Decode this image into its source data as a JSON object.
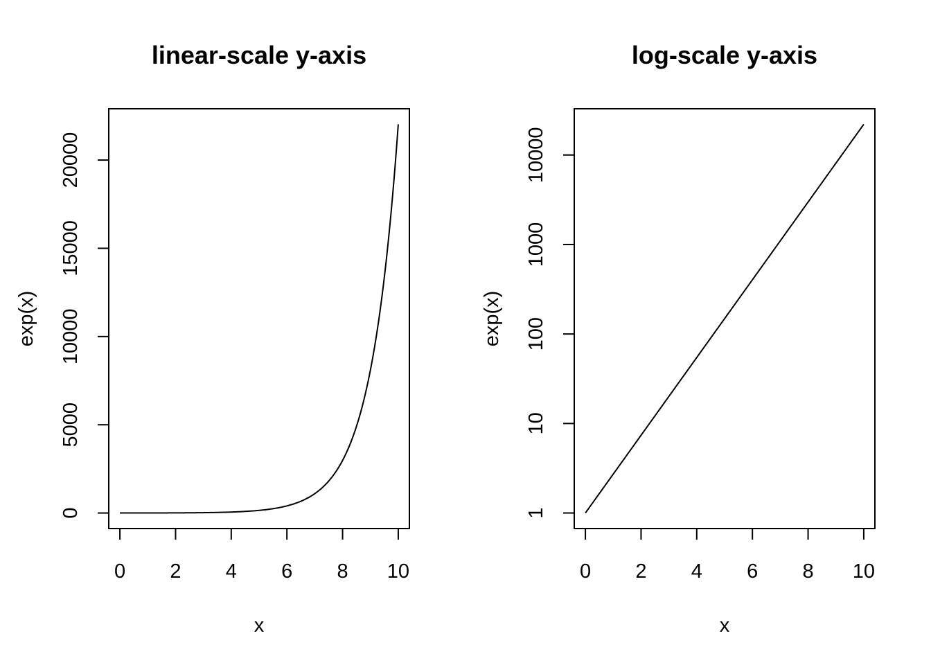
{
  "chart_data": [
    {
      "type": "line",
      "title": "linear-scale y-axis",
      "xlabel": "x",
      "ylabel": "exp(x)",
      "yscale": "linear",
      "xlim": [
        0,
        10
      ],
      "ylim": [
        1,
        22026.47
      ],
      "x_ticks": [
        "0",
        "2",
        "4",
        "6",
        "8",
        "10"
      ],
      "y_ticks": [
        "0",
        "5000",
        "10000",
        "15000",
        "20000"
      ],
      "series": [
        {
          "function": "exp(x)",
          "x": [
            0,
            1,
            2,
            3,
            4,
            5,
            6,
            7,
            8,
            9,
            10
          ],
          "y": [
            1,
            2.72,
            7.39,
            20.09,
            54.6,
            148.41,
            403.43,
            1096.63,
            2980.96,
            8103.08,
            22026.47
          ]
        }
      ],
      "grid": false,
      "legend": "none"
    },
    {
      "type": "line",
      "title": "log-scale y-axis",
      "xlabel": "x",
      "ylabel": "exp(x)",
      "yscale": "log",
      "xlim": [
        0,
        10
      ],
      "ylim": [
        1,
        22026.47
      ],
      "x_ticks": [
        "0",
        "2",
        "4",
        "6",
        "8",
        "10"
      ],
      "y_ticks": [
        "1",
        "10",
        "100",
        "1000",
        "10000"
      ],
      "series": [
        {
          "function": "exp(x)",
          "x": [
            0,
            1,
            2,
            3,
            4,
            5,
            6,
            7,
            8,
            9,
            10
          ],
          "y": [
            1,
            2.72,
            7.39,
            20.09,
            54.6,
            148.41,
            403.43,
            1096.63,
            2980.96,
            8103.08,
            22026.47
          ]
        }
      ],
      "grid": false,
      "legend": "none"
    }
  ]
}
